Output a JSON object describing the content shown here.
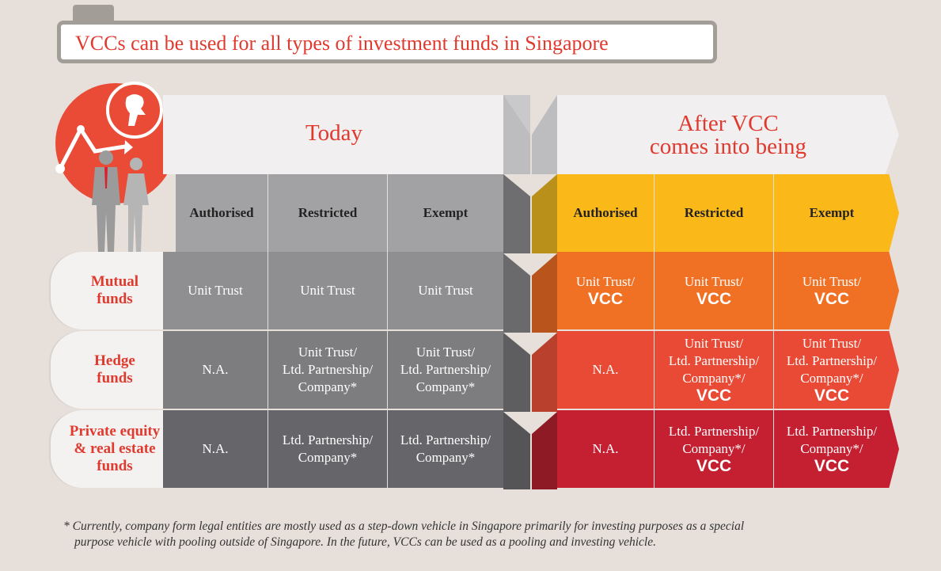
{
  "title": "VCCs can be used for all types of investment funds in Singapore",
  "today_header": "Today",
  "after_header_line1": "After VCC",
  "after_header_line2": "comes into being",
  "columns": [
    "Authorised",
    "Restricted",
    "Exempt"
  ],
  "rows": [
    {
      "label_line1": "Mutual",
      "label_line2": "funds",
      "label_line3": ""
    },
    {
      "label_line1": "Hedge",
      "label_line2": "funds",
      "label_line3": ""
    },
    {
      "label_line1": "Private equity",
      "label_line2": "& real estate",
      "label_line3": "funds"
    }
  ],
  "today": {
    "r1": [
      "Unit Trust",
      "Unit Trust",
      "Unit Trust"
    ],
    "r2": [
      [
        "N.A."
      ],
      [
        "Unit Trust/",
        "Ltd. Partnership/",
        "Company*"
      ],
      [
        "Unit Trust/",
        "Ltd. Partnership/",
        "Company*"
      ]
    ],
    "r3": [
      [
        "N.A."
      ],
      [
        "Ltd. Partnership/",
        "Company*"
      ],
      [
        "Ltd. Partnership/",
        "Company*"
      ]
    ]
  },
  "after": {
    "r1": [
      [
        "Unit Trust/",
        "VCC"
      ],
      [
        "Unit Trust/",
        "VCC"
      ],
      [
        "Unit Trust/",
        "VCC"
      ]
    ],
    "r2": [
      [
        "N.A."
      ],
      [
        "Unit Trust/",
        "Ltd. Partnership/",
        "Company*/",
        "VCC"
      ],
      [
        "Unit Trust/",
        "Ltd. Partnership/",
        "Company*/",
        "VCC"
      ]
    ],
    "r3": [
      [
        "N.A."
      ],
      [
        "Ltd. Partnership/",
        "Company*/",
        "VCC"
      ],
      [
        "Ltd. Partnership/",
        "Company*/",
        "VCC"
      ]
    ]
  },
  "footnote_line1": "* Currently, company form legal entities are mostly used as a step-down vehicle in Singapore primarily for investing purposes as a special",
  "footnote_line2": "purpose vehicle with pooling outside of Singapore. In the future, VCCs can be used as a pooling and investing vehicle.",
  "colors": {
    "accent_red": "#e03a2f",
    "yellow": "#fbb819",
    "orange": "#f07024",
    "red": "#e84a35",
    "dark_red": "#c42032",
    "grey_header": "#a2a2a4",
    "grey_r1": "#8f8f91",
    "grey_r2": "#7d7d7f",
    "grey_r3": "#66666a"
  },
  "icons": [
    "merlion-icon",
    "trend-arrow-icon",
    "business-people-icon"
  ]
}
